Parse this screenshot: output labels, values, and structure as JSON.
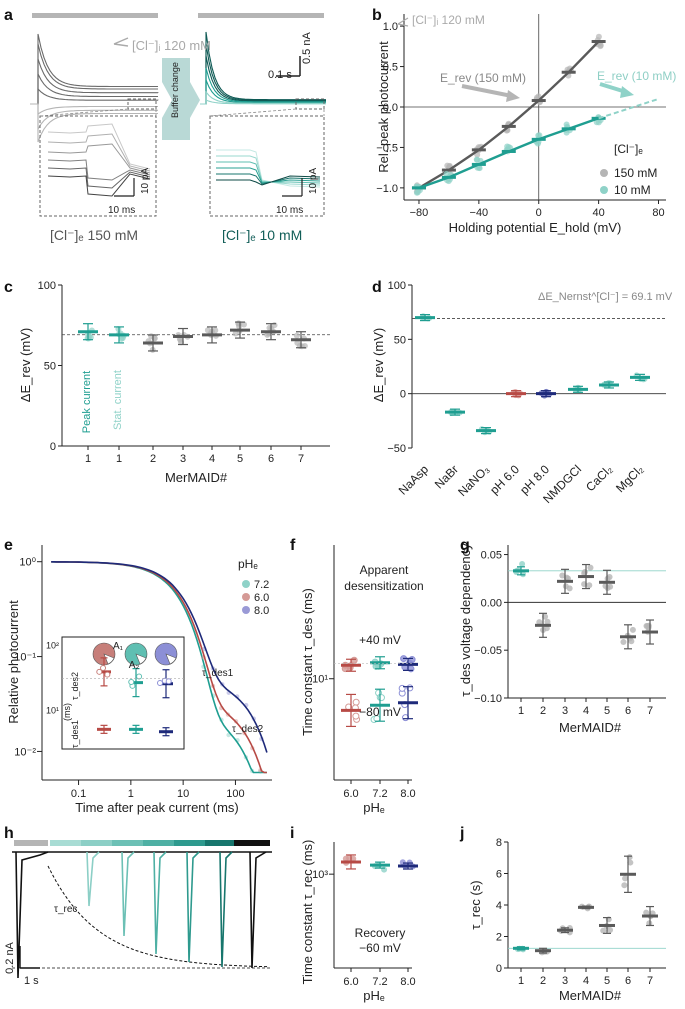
{
  "colors": {
    "gray": "#5a5a5a",
    "lightgray": "#b5b5b5",
    "teal": "#1f9e91",
    "lightteal": "#8fd2c8",
    "red": "#b74a45",
    "navy": "#1e2a7a",
    "violet": "#7b7fc8",
    "black": "#111111"
  },
  "panels": {
    "a": "a",
    "b": "b",
    "c": "c",
    "d": "d",
    "e": "e",
    "f": "f",
    "g": "g",
    "h": "h",
    "i": "i",
    "j": "j"
  },
  "panel_a": {
    "pipette_label": "[Cl⁻]ᵢ 120 mM",
    "scale_time": "0.1 s",
    "scale_current": "0.5 nA",
    "inset_time": "10 ms",
    "inset_current": "10 pA",
    "buffer_label": "Buffer change",
    "cond_left": "[Cl⁻]ₑ 150 mM",
    "cond_right": "[Cl⁻]ₑ 10 mM"
  },
  "chart_data": [
    {
      "panel": "b",
      "type": "line",
      "title": "[Cl⁻]ᵢ 120 mM",
      "xlabel": "Holding potential E_hold (mV)",
      "ylabel": "Rel. peak photocurrent",
      "xlim": [
        -90,
        85
      ],
      "ylim": [
        -1.15,
        1.15
      ],
      "xticks": [
        "-80",
        "-40",
        "0",
        "40",
        "80"
      ],
      "yticks": [
        "-1.0",
        "-0.5",
        "0.0",
        "0.5",
        "1.0"
      ],
      "x": [
        -80,
        -60,
        -40,
        -20,
        0,
        20,
        40
      ],
      "series": [
        {
          "name": "150 mM",
          "values": [
            -1.0,
            -0.78,
            -0.53,
            -0.24,
            0.08,
            0.43,
            0.81
          ]
        },
        {
          "name": "10 mM",
          "values": [
            -1.0,
            -0.87,
            -0.71,
            -0.55,
            -0.4,
            -0.27,
            -0.14
          ]
        }
      ],
      "annotations": [
        "E_rev (150 mM)",
        "E_rev (10 mM)"
      ],
      "legend_title": "[Cl⁻]ₑ",
      "legend": [
        "150 mM",
        "10 mM"
      ],
      "legend_position": "right"
    },
    {
      "panel": "c",
      "type": "scatter",
      "xlabel": "MerMAID#",
      "ylabel": "ΔE_rev (mV)",
      "ylim": [
        0,
        100
      ],
      "yticks": [
        "0",
        "50",
        "100"
      ],
      "categories": [
        "1",
        "1",
        "2",
        "3",
        "4",
        "5",
        "6",
        "7"
      ],
      "values": [
        71,
        69,
        64,
        68,
        69,
        72,
        71,
        66
      ],
      "reference_line": 69.1,
      "annotations": [
        "Peak current",
        "Stat. current"
      ]
    },
    {
      "panel": "d",
      "type": "scatter",
      "ylabel": "ΔE_rev (mV)",
      "ylim": [
        -50,
        100
      ],
      "yticks": [
        "-50",
        "0",
        "50",
        "100"
      ],
      "categories": [
        "NaAsp",
        "NaBr",
        "NaNO₃",
        "pH 6.0",
        "pH 8.0",
        "NMDGCl",
        "CaCl₂",
        "MgCl₂"
      ],
      "values": [
        70,
        -17,
        -34,
        0,
        0,
        4,
        8,
        15
      ],
      "reference_line": 69.1,
      "annotation": "ΔE_Nernst^[Cl⁻] = 69.1 mV"
    },
    {
      "panel": "e",
      "type": "line",
      "xlabel": "Time after peak current (ms)",
      "ylabel": "Relative photocurrent",
      "xscale": "log",
      "yscale": "log",
      "xlim": [
        0.02,
        500
      ],
      "ylim": [
        0.005,
        1.5
      ],
      "xticks": [
        "0.1",
        "1",
        "10",
        "100"
      ],
      "yticks": [
        "10⁻²",
        "10⁻¹",
        "10⁰"
      ],
      "legend_title": "pHₑ",
      "legend": [
        "7.2",
        "6.0",
        "8.0"
      ],
      "labels": [
        "τ_des1",
        "τ_des2"
      ],
      "inset": {
        "ylabel_top": "τ_des2",
        "ylabel_bottom": "τ_des1",
        "yunit": "(ms)",
        "ytick_top": "10²",
        "ytick_mid": "10¹",
        "pie_labels": [
          "A₁",
          "A₂"
        ],
        "tau_des2": [
          38,
          26,
          25
        ],
        "tau_des1": [
          5,
          5,
          4.6
        ]
      }
    },
    {
      "panel": "f",
      "type": "scatter",
      "title": "Apparent desensitization",
      "xlabel": "pHₑ",
      "ylabel": "Time constant τ_des (ms)",
      "yscale": "log",
      "ytick": "10¹",
      "categories": [
        "6.0",
        "7.2",
        "8.0"
      ],
      "series": [
        {
          "name": "+40 mV",
          "values": [
            11.5,
            11.8,
            11.6
          ]
        },
        {
          "name": "-80 mV",
          "values": [
            7.2,
            7.6,
            7.8
          ]
        }
      ],
      "labels": [
        "+40 mV",
        "−80 mV"
      ]
    },
    {
      "panel": "g",
      "type": "scatter",
      "xlabel": "MerMAID#",
      "ylabel": "τ_des voltage dependency",
      "ylim": [
        -0.1,
        0.06
      ],
      "yticks": [
        "−0.10",
        "−0.05",
        "0.00",
        "0.05"
      ],
      "categories": [
        "1",
        "2",
        "3",
        "4",
        "5",
        "6",
        "7"
      ],
      "values": [
        0.033,
        -0.024,
        0.022,
        0.027,
        0.021,
        -0.036,
        -0.031
      ]
    },
    {
      "panel": "h",
      "type": "line",
      "scale_current": "0.2 nA",
      "scale_time": "1 s",
      "label": "τ_rec"
    },
    {
      "panel": "i",
      "type": "scatter",
      "title": "Recovery",
      "subtitle": "−60 mV",
      "xlabel": "pHₑ",
      "ylabel": "Time constant τ_rec (ms)",
      "yscale": "log",
      "ytick": "10³",
      "categories": [
        "6.0",
        "7.2",
        "8.0"
      ],
      "values": [
        1250,
        1180,
        1160
      ]
    },
    {
      "panel": "j",
      "type": "scatter",
      "xlabel": "MerMAID#",
      "ylabel": "τ_rec (s)",
      "ylim": [
        0,
        8
      ],
      "yticks": [
        "0",
        "2",
        "4",
        "6",
        "8"
      ],
      "categories": [
        "1",
        "2",
        "3",
        "4",
        "5",
        "6",
        "7"
      ],
      "values": [
        1.25,
        1.1,
        2.4,
        3.85,
        2.7,
        5.95,
        3.3
      ]
    }
  ]
}
